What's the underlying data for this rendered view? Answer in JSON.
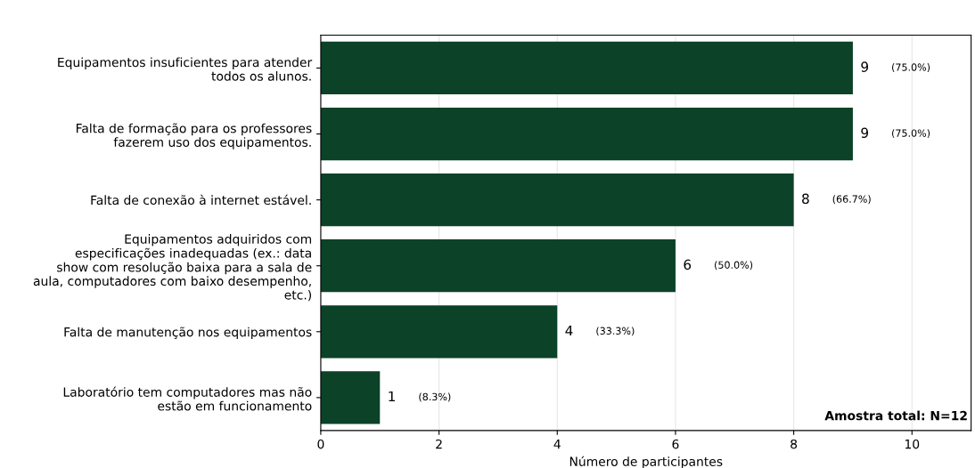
{
  "chart_data": {
    "type": "bar",
    "orientation": "horizontal",
    "xlabel": "Número de participantes",
    "categories": [
      "Equipamentos insuficientes para atender\ntodos os alunos.",
      "Falta de formação para os professores\nfazerem uso dos equipamentos.",
      "Falta de conexão à internet estável.",
      "Equipamentos adquiridos com\nespecificações inadequadas (ex.: data\nshow com resolução baixa para a sala de\naula, computadores com baixo desempenho,\netc.)",
      "Falta de manutenção nos equipamentos",
      "Laboratório tem computadores mas não\nestão em funcionamento"
    ],
    "values": [
      9,
      9,
      8,
      6,
      4,
      1
    ],
    "color": "#0b4228",
    "value_labels": [
      "9",
      "9",
      "8",
      "6",
      "4",
      "1"
    ],
    "annotations": [
      "(75.0%)",
      "(75.0%)",
      "(66.7%)",
      "(50.0%)",
      "(33.3%)",
      "(8.3%)",
      "Amostra total: N=12"
    ],
    "xlim": [
      0,
      11
    ],
    "xticks": [
      0,
      2,
      4,
      6,
      8,
      10
    ],
    "grid": "x"
  }
}
